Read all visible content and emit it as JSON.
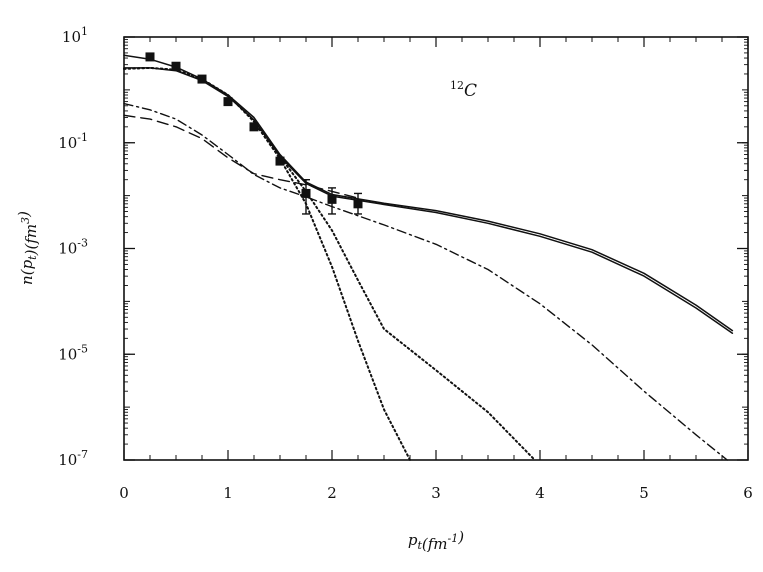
{
  "chart_data": {
    "type": "line",
    "xlabel": "p_t(fm^-1)",
    "ylabel": "n(p_t)(fm^3)",
    "annotation": "12C",
    "xlim": [
      0,
      6
    ],
    "ylim": [
      1e-07,
      10
    ],
    "yscale": "log",
    "x_ticks": [
      "0",
      "1",
      "2",
      "3",
      "4",
      "5",
      "6"
    ],
    "y_ticks": [
      {
        "value": 10,
        "mantissa": "10",
        "exponent": "1"
      },
      {
        "value": 0.1,
        "mantissa": "10",
        "exponent": "-1"
      },
      {
        "value": 0.001,
        "mantissa": "10",
        "exponent": "-3"
      },
      {
        "value": 1e-05,
        "mantissa": "10",
        "exponent": "-5"
      },
      {
        "value": 1e-07,
        "mantissa": "10",
        "exponent": "-7"
      }
    ],
    "grid": false,
    "legend": "none",
    "series": [
      {
        "style": "solid",
        "x": [
          0,
          0.25,
          0.5,
          0.75,
          1.0,
          1.25,
          1.5,
          1.75,
          2.0,
          2.5,
          3.0,
          3.5,
          4.0,
          4.5,
          5.0,
          5.5,
          5.85
        ],
        "y": [
          4.5,
          3.8,
          2.7,
          1.6,
          0.8,
          0.3,
          0.06,
          0.018,
          0.0105,
          0.0072,
          0.0052,
          0.0033,
          0.0019,
          0.00095,
          0.00034,
          8.5e-05,
          2.8e-05
        ]
      },
      {
        "style": "solid",
        "x": [
          0,
          0.25,
          0.5,
          0.75,
          1.0,
          1.25,
          1.5,
          1.75,
          2.0,
          2.5,
          3.0,
          3.5,
          4.0,
          4.5,
          5.0,
          5.5,
          5.85
        ],
        "y": [
          2.6,
          2.6,
          2.3,
          1.5,
          0.75,
          0.27,
          0.055,
          0.017,
          0.0098,
          0.0068,
          0.0048,
          0.003,
          0.0017,
          0.00085,
          0.0003,
          7.5e-05,
          2.5e-05
        ]
      },
      {
        "style": "dotted",
        "x": [
          0,
          0.25,
          0.5,
          0.75,
          1.0,
          1.25,
          1.5,
          1.75,
          2.0,
          2.25,
          2.5,
          2.75
        ],
        "y": [
          2.5,
          2.6,
          2.4,
          1.6,
          0.8,
          0.25,
          0.05,
          0.007,
          0.00045,
          1.8e-05,
          9e-07,
          1e-07
        ]
      },
      {
        "style": "dotted",
        "x": [
          0,
          0.25,
          0.5,
          0.75,
          1.0,
          1.25,
          1.5,
          1.75,
          2.0,
          2.25,
          2.5,
          3.0,
          3.5,
          3.95
        ],
        "y": [
          2.5,
          2.6,
          2.4,
          1.6,
          0.8,
          0.26,
          0.055,
          0.012,
          0.0022,
          0.00025,
          3e-05,
          5e-06,
          8e-07,
          1e-07
        ]
      },
      {
        "style": "dashdot",
        "x": [
          0,
          0.25,
          0.5,
          0.75,
          1.0,
          1.25,
          1.5,
          1.75,
          2.0,
          2.5,
          3.0,
          3.5,
          4.0,
          4.5,
          5.0,
          5.5,
          5.8
        ],
        "y": [
          0.55,
          0.42,
          0.28,
          0.14,
          0.06,
          0.025,
          0.014,
          0.0095,
          0.0062,
          0.0028,
          0.0012,
          0.0004,
          9e-05,
          1.5e-05,
          2e-06,
          3e-07,
          1e-07
        ]
      },
      {
        "style": "dashed",
        "x": [
          0,
          0.25,
          0.5,
          0.75,
          1.0,
          1.25,
          1.5,
          1.75,
          2.0,
          2.25
        ],
        "y": [
          0.33,
          0.28,
          0.2,
          0.12,
          0.052,
          0.026,
          0.02,
          0.016,
          0.012,
          0.009
        ]
      }
    ],
    "markers": {
      "style": "filled-square",
      "x": [
        0.25,
        0.5,
        0.75,
        1.0,
        1.25,
        1.5,
        1.75,
        2.0,
        2.25
      ],
      "y": [
        4.2,
        2.8,
        1.6,
        0.6,
        0.2,
        0.045,
        0.011,
        0.0085,
        0.007
      ],
      "err_low": [
        4.2,
        2.8,
        1.6,
        0.6,
        0.2,
        0.045,
        0.0045,
        0.0045,
        0.0045
      ],
      "err_high": [
        4.2,
        2.8,
        1.6,
        0.6,
        0.2,
        0.045,
        0.02,
        0.014,
        0.011
      ]
    }
  }
}
